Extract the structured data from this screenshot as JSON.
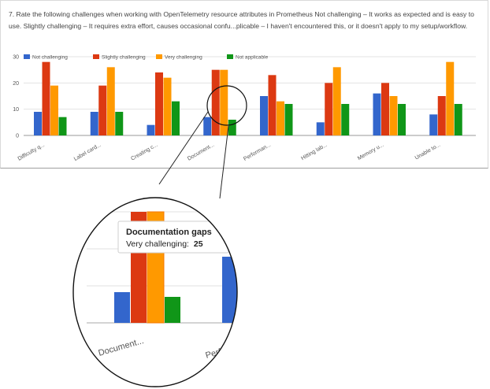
{
  "question": "7. Rate the following challenges when working with OpenTelemetry resource attributes in Prometheus    Not challenging – It works as expected and is easy to use.  Slightly challenging – It requires extra effort, causes occasional confu...plicable – I haven't encountered this, or it doesn't apply to my setup/workflow.",
  "chart_data": {
    "type": "bar",
    "categories": [
      "Difficulty q...",
      "Label card...",
      "Creating c...",
      "Document...",
      "Performan...",
      "Hitting lab...",
      "Memory u...",
      "Unable to..."
    ],
    "series": [
      {
        "name": "Not challenging",
        "color": "#3366cc",
        "values": [
          9,
          9,
          4,
          7,
          15,
          5,
          16,
          8
        ]
      },
      {
        "name": "Slightly challenging",
        "color": "#dc3912",
        "values": [
          28,
          19,
          24,
          25,
          23,
          20,
          20,
          15
        ]
      },
      {
        "name": "Very challenging",
        "color": "#ff9900",
        "values": [
          19,
          26,
          22,
          25,
          13,
          26,
          15,
          28
        ]
      },
      {
        "name": "Not applicable",
        "color": "#109618",
        "values": [
          7,
          9,
          13,
          6,
          12,
          12,
          12,
          12
        ]
      }
    ],
    "yticks": [
      0,
      10,
      20,
      30
    ],
    "ylim": [
      0,
      30
    ],
    "legend_position": "top-left",
    "grid": true
  },
  "zoom": {
    "tooltip_title": "Documentation gaps",
    "tooltip_label": "Very challenging:",
    "tooltip_value": "25",
    "label_1": "Document...",
    "label_2": "Perfo"
  }
}
